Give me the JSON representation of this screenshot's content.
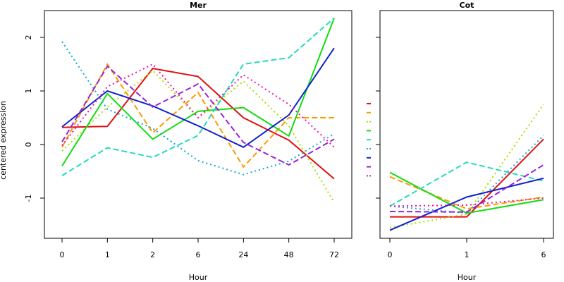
{
  "chart_data": [
    {
      "type": "line",
      "title": "Mer",
      "xlabel": "Hour",
      "ylabel": "centered expression",
      "categories": [
        "0",
        "1",
        "2",
        "6",
        "24",
        "48",
        "72"
      ],
      "ylim": [
        -1.75,
        2.5
      ],
      "yticks": [
        -1,
        0,
        1,
        2
      ],
      "series": [
        {
          "color": "#e01010",
          "dash": "solid",
          "values": [
            0.32,
            0.34,
            1.42,
            1.27,
            0.5,
            0.08,
            -0.64
          ]
        },
        {
          "color": "#ff9900",
          "dash": "dash",
          "values": [
            -0.05,
            1.5,
            0.22,
            0.97,
            -0.42,
            0.5,
            0.5
          ]
        },
        {
          "color": "#aadd00",
          "dash": "dot",
          "values": [
            -0.12,
            0.7,
            1.38,
            0.5,
            1.18,
            0.35,
            -1.08
          ]
        },
        {
          "color": "#11dd11",
          "dash": "solid",
          "values": [
            -0.4,
            0.95,
            0.1,
            0.62,
            0.69,
            0.16,
            2.36
          ]
        },
        {
          "color": "#22ddbb",
          "dash": "dash",
          "values": [
            -0.58,
            -0.06,
            -0.24,
            0.17,
            1.5,
            1.62,
            2.36
          ]
        },
        {
          "color": "#11aadd",
          "dash": "dot",
          "values": [
            1.92,
            0.66,
            0.3,
            -0.3,
            -0.56,
            -0.31,
            0.2
          ]
        },
        {
          "color": "#1122cc",
          "dash": "solid",
          "values": [
            0.33,
            1.0,
            0.72,
            0.35,
            -0.05,
            0.55,
            1.8
          ]
        },
        {
          "color": "#9922dd",
          "dash": "dash",
          "values": [
            0.05,
            1.46,
            0.7,
            1.13,
            0.04,
            -0.38,
            0.1
          ]
        },
        {
          "color": "#ee11aa",
          "dash": "dot",
          "values": [
            -0.02,
            1.08,
            1.5,
            0.5,
            1.3,
            0.75,
            -0.05
          ]
        }
      ]
    },
    {
      "type": "line",
      "title": "Cot",
      "xlabel": "Hour",
      "ylabel": "",
      "categories": [
        "0",
        "1",
        "6"
      ],
      "ylim": [
        -1.75,
        2.5
      ],
      "yticks": [
        -1,
        0,
        1,
        2
      ],
      "series": [
        {
          "color": "#e01010",
          "dash": "solid",
          "values": [
            -1.35,
            -1.35,
            0.1
          ]
        },
        {
          "color": "#ff9900",
          "dash": "dash",
          "values": [
            -0.6,
            -1.2,
            -0.98
          ]
        },
        {
          "color": "#aadd00",
          "dash": "dot",
          "values": [
            -1.55,
            -1.3,
            0.75
          ]
        },
        {
          "color": "#11dd11",
          "dash": "solid",
          "values": [
            -0.52,
            -1.28,
            -1.03
          ]
        },
        {
          "color": "#22ddbb",
          "dash": "dash",
          "values": [
            -1.15,
            -0.33,
            -0.68
          ]
        },
        {
          "color": "#11aadd",
          "dash": "dot",
          "values": [
            -1.15,
            -1.28,
            0.17
          ]
        },
        {
          "color": "#1122cc",
          "dash": "solid",
          "values": [
            -1.6,
            -0.98,
            -0.63
          ]
        },
        {
          "color": "#9922dd",
          "dash": "dash",
          "values": [
            -1.25,
            -1.26,
            -0.38
          ]
        },
        {
          "color": "#ee11aa",
          "dash": "dot",
          "values": [
            -1.15,
            -1.13,
            -1.0
          ]
        }
      ]
    }
  ],
  "legend": {
    "position": "between-panels",
    "entries": [
      {
        "color": "#e01010",
        "dash": "solid"
      },
      {
        "color": "#ff9900",
        "dash": "dash"
      },
      {
        "color": "#aadd00",
        "dash": "dot"
      },
      {
        "color": "#11dd11",
        "dash": "solid"
      },
      {
        "color": "#22ddbb",
        "dash": "dash"
      },
      {
        "color": "#11aadd",
        "dash": "dot"
      },
      {
        "color": "#1122cc",
        "dash": "solid"
      },
      {
        "color": "#9922dd",
        "dash": "dash"
      },
      {
        "color": "#ee11aa",
        "dash": "dot"
      }
    ]
  }
}
